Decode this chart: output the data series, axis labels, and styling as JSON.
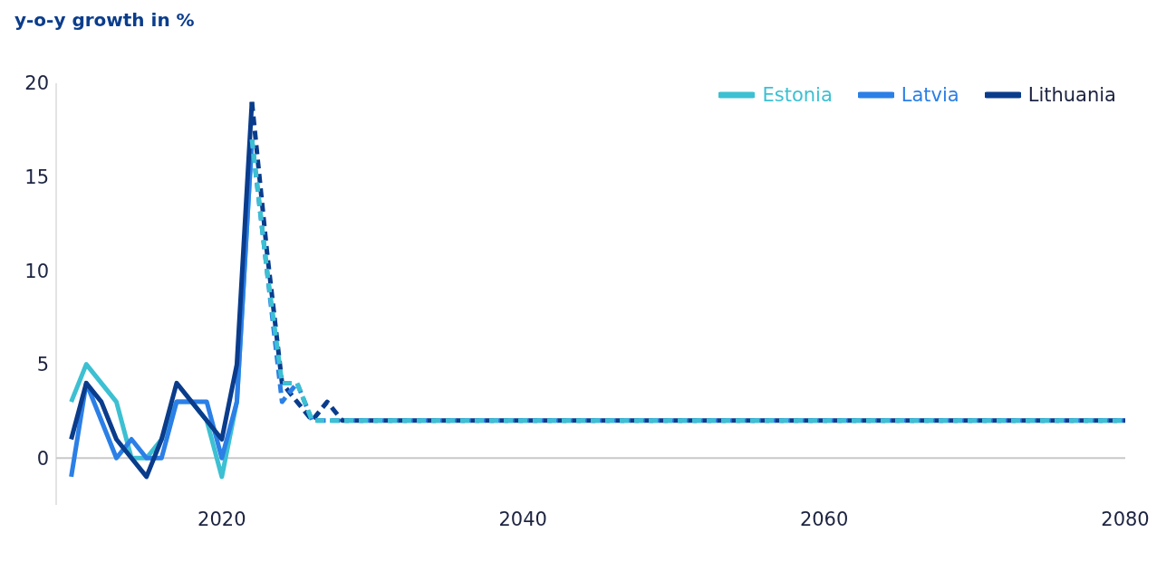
{
  "chart_data": {
    "type": "line",
    "ylabel": "y-o-y growth in %",
    "xlim": [
      2009,
      2080
    ],
    "xticks": [
      2020,
      2040,
      2060,
      2080
    ],
    "ylim": [
      -2.5,
      20
    ],
    "yticks": [
      0,
      5,
      10,
      15,
      20
    ],
    "grid": false,
    "legend": "top right",
    "marker": "none",
    "ref_lines": [
      {
        "axis": "y",
        "value": 0,
        "color": "#c8c8c8"
      }
    ],
    "series": [
      {
        "name": "Estonia",
        "color": "#3cc0d2",
        "line_style": "solid",
        "x": [
          2010,
          2011,
          2012,
          2013,
          2014,
          2015,
          2016,
          2017,
          2018,
          2019,
          2020,
          2021,
          2022
        ],
        "values": [
          3,
          5,
          4,
          3,
          0,
          0,
          1,
          3,
          3,
          2,
          -1,
          3,
          17
        ]
      },
      {
        "name": "Latvia",
        "color": "#2b7fe6",
        "line_style": "solid",
        "x": [
          2010,
          2011,
          2012,
          2013,
          2014,
          2015,
          2016,
          2017,
          2018,
          2019,
          2020,
          2021,
          2022
        ],
        "values": [
          -1,
          4,
          2,
          0,
          1,
          0,
          0,
          3,
          3,
          3,
          0,
          3,
          17
        ]
      },
      {
        "name": "Lithuania",
        "color": "#0a3c8c",
        "line_style": "solid",
        "x": [
          2010,
          2011,
          2012,
          2013,
          2014,
          2015,
          2016,
          2017,
          2018,
          2019,
          2020,
          2021,
          2022
        ],
        "values": [
          1,
          4,
          3,
          1,
          0,
          -1,
          1,
          4,
          3,
          2,
          1,
          5,
          19
        ]
      },
      {
        "color": "#3cc0d2",
        "line_style": "dashed",
        "x": [
          2022,
          2023,
          2024,
          2025,
          2026,
          2027,
          2080
        ],
        "values": [
          17,
          10,
          4,
          4,
          2,
          2,
          2
        ]
      },
      {
        "color": "#2b7fe6",
        "line_style": "dashed",
        "x": [
          2022,
          2023,
          2024,
          2025,
          2026,
          2027,
          2080
        ],
        "values": [
          17,
          10,
          3,
          4,
          2,
          2,
          2
        ]
      },
      {
        "color": "#0a3c8c",
        "line_style": "dashed",
        "x": [
          2022,
          2023,
          2024,
          2025,
          2026,
          2027,
          2028,
          2080
        ],
        "values": [
          19,
          11,
          4,
          3,
          2,
          3,
          2,
          2
        ]
      }
    ]
  }
}
